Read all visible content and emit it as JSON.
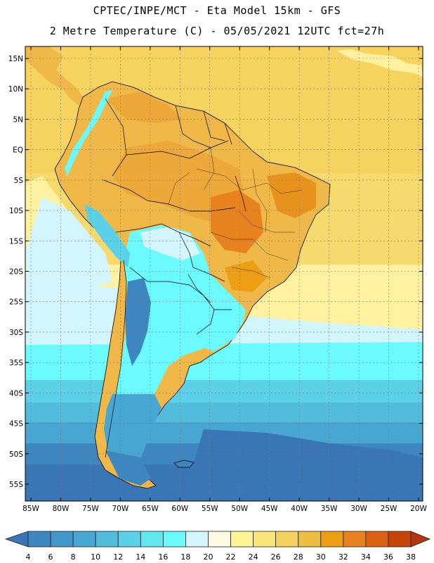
{
  "title_line1": "CPTEC/INPE/MCT -  Eta Model 15km - GFS",
  "title_line2": "2 Metre Temperature (C) - 05/05/2021 12UTC fct=27h",
  "lat_labels": [
    "15N",
    "10N",
    "5N",
    "EQ",
    "5S",
    "10S",
    "15S",
    "20S",
    "25S",
    "30S",
    "35S",
    "40S",
    "45S",
    "50S",
    "55S"
  ],
  "lon_labels": [
    "85W",
    "80W",
    "75W",
    "70W",
    "65W",
    "60W",
    "55W",
    "50W",
    "45W",
    "40W",
    "35W",
    "30W",
    "25W",
    "20W"
  ],
  "colorbar": {
    "labels": [
      "4",
      "6",
      "8",
      "10",
      "12",
      "14",
      "16",
      "18",
      "20",
      "22",
      "24",
      "26",
      "28",
      "30",
      "32",
      "34",
      "36",
      "38"
    ],
    "colors": [
      "#3a76b6",
      "#3e86c0",
      "#4296c8",
      "#48a6d2",
      "#52bcdc",
      "#5cd0e6",
      "#62e6f2",
      "#6afaff",
      "#d2f5ff",
      "#fff8e2",
      "#fff596",
      "#fbe578",
      "#f4d05e",
      "#eebe42",
      "#ec9e14",
      "#e8821e",
      "#dc6012",
      "#c6440a",
      "#b2360e"
    ]
  },
  "map_colors": {
    "ocean_north": "#f6d25e",
    "ocean_mid": "#fff1a0",
    "ocean_cold_1": "#d2f5ff",
    "ocean_cold_2": "#6afaff",
    "ocean_cold_3": "#52bcdc",
    "ocean_cold_4": "#4296c8",
    "ocean_cold_5": "#3a76b6",
    "land_warm": "#f0b848",
    "land_hot": "#e8821e",
    "andes": "#5cd0e6"
  }
}
